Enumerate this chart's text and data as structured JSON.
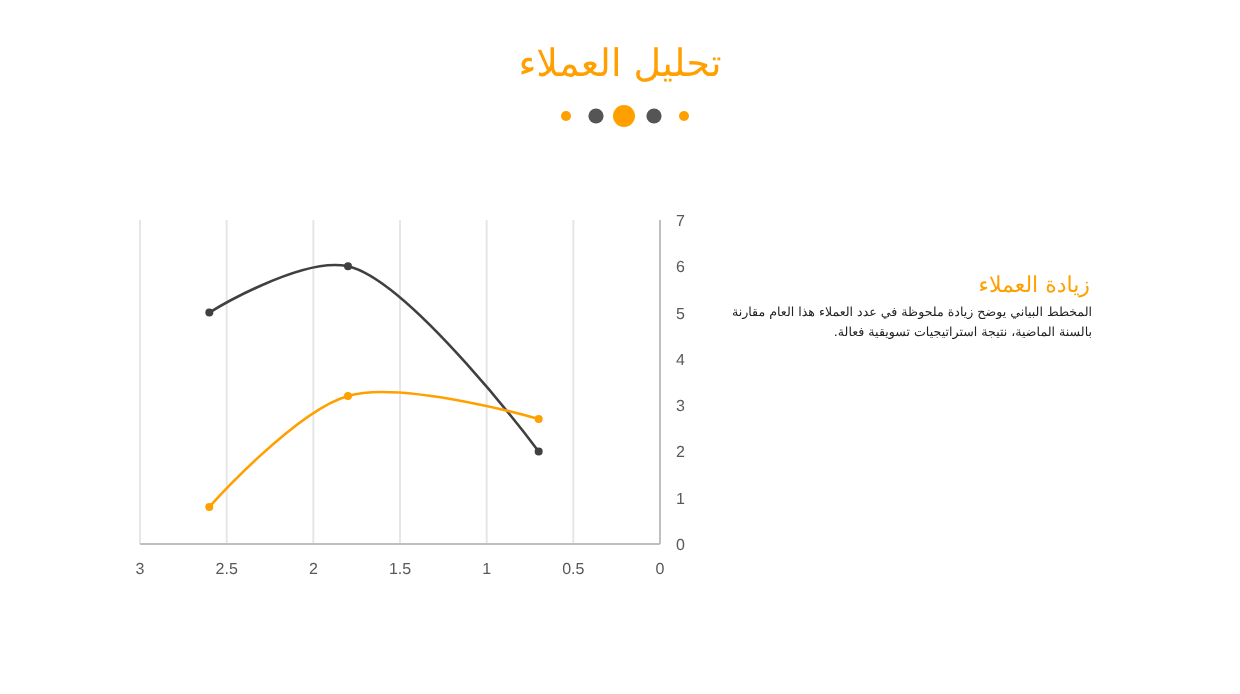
{
  "chart_data": {
    "type": "line",
    "title": "تحليل العملاء",
    "annotations": [
      "زيادة العملاء",
      "المخطط البياني يوضح زيادة ملحوظة في عدد العملاء هذا العام مقارنة بالسنة الماضية، نتيجة استراتيجيات تسويقية فعالة."
    ],
    "x": [
      2.6,
      1.8,
      0.7
    ],
    "series": [
      {
        "color": "#404040",
        "values": [
          5,
          6,
          2
        ]
      },
      {
        "color": "#ffa000",
        "values": [
          0.8,
          3.2,
          2.7
        ]
      }
    ],
    "xlim": [
      3,
      0
    ],
    "xticks": [
      3,
      2.5,
      2,
      1.5,
      1,
      0.5,
      0
    ],
    "ylim": [
      0,
      7
    ],
    "yticks": [
      0,
      1,
      2,
      3,
      4,
      5,
      6,
      7
    ],
    "grid": "x",
    "marker": "circle"
  }
}
